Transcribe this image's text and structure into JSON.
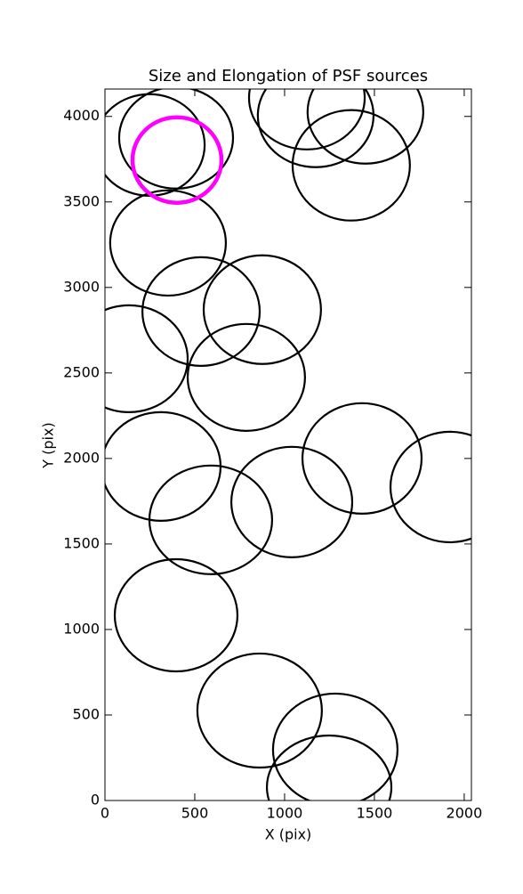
{
  "chart_data": {
    "type": "ellipse",
    "title": "Size and Elongation of PSF sources",
    "x_label": "X (pix)",
    "y_label": "Y (pix)",
    "xlim": [
      0,
      2040
    ],
    "ylim": [
      0,
      4160
    ],
    "xticks": [
      0,
      500,
      1000,
      1500,
      2000
    ],
    "yticks": [
      0,
      500,
      1000,
      1500,
      2000,
      2500,
      3000,
      3500,
      4000
    ],
    "series": [
      {
        "color": "#000000",
        "x": [
          248,
          396,
          1124,
          1173,
          1450,
          1371,
          351,
          535,
          876,
          134,
          787,
          312,
          589,
          1040,
          1431,
          1921,
          396,
          861,
          1282,
          1248
        ],
        "y": [
          3833,
          3875,
          4109,
          4005,
          4026,
          3714,
          3260,
          2859,
          2870,
          2583,
          2474,
          1953,
          1641,
          1745,
          2000,
          1833,
          1083,
          526,
          297,
          78
        ],
        "width": [
          614,
          634,
          644,
          644,
          644,
          653,
          644,
          653,
          653,
          653,
          653,
          663,
          683,
          673,
          663,
          663,
          683,
          693,
          693,
          693
        ],
        "height": [
          594,
          594,
          604,
          604,
          604,
          646,
          615,
          635,
          635,
          625,
          625,
          635,
          635,
          646,
          646,
          646,
          656,
          667,
          656,
          604
        ]
      },
      {
        "color": "#ff00ff",
        "x": [
          401
        ],
        "y": [
          3745
        ],
        "width": [
          495
        ],
        "height": [
          500
        ]
      }
    ]
  }
}
